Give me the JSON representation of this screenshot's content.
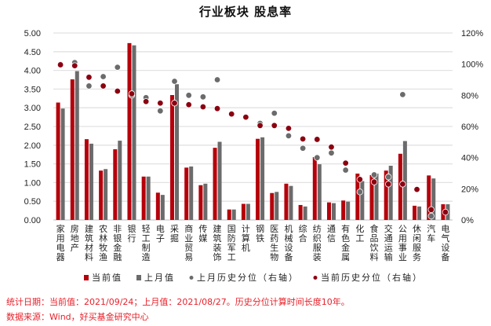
{
  "chart_data": {
    "type": "bar",
    "title": "行业板块 股息率",
    "categories": [
      "家用电器",
      "房地产",
      "建筑材料",
      "农林牧渔",
      "非银金融",
      "银行",
      "轻工制造",
      "电子",
      "采掘",
      "商业贸易",
      "传媒",
      "建筑装饰",
      "国防军工",
      "计算机",
      "钢铁",
      "医药生物",
      "机械设备",
      "综合",
      "纺织服装",
      "通信",
      "有色金属",
      "化工",
      "食品饮料",
      "交通运输",
      "公用事业",
      "休闲服务",
      "汽车",
      "电气设备"
    ],
    "series": [
      {
        "name": "当前值",
        "type": "bar",
        "axis": "left",
        "color": "#b5000a",
        "values": [
          3.14,
          3.76,
          2.16,
          1.32,
          1.89,
          4.73,
          1.16,
          0.73,
          3.34,
          1.4,
          0.93,
          1.93,
          0.28,
          0.43,
          2.17,
          0.72,
          0.97,
          0.4,
          1.68,
          0.47,
          0.52,
          1.24,
          1.2,
          1.32,
          1.77,
          0.38,
          1.19,
          0.42
        ]
      },
      {
        "name": "上月值",
        "type": "bar",
        "axis": "left",
        "color": "#6b6b6b",
        "values": [
          2.98,
          3.98,
          2.04,
          1.36,
          2.12,
          4.67,
          1.16,
          0.67,
          3.63,
          1.43,
          0.97,
          2.09,
          0.28,
          0.43,
          2.21,
          0.75,
          0.91,
          0.36,
          1.49,
          0.45,
          0.49,
          1.04,
          1.24,
          1.45,
          2.11,
          0.36,
          1.11,
          0.42
        ]
      },
      {
        "name": "上月历史分位（右轴）",
        "type": "scatter",
        "axis": "right",
        "color": "#6b6b6b",
        "values": [
          100,
          101,
          86,
          92,
          98,
          80,
          78.5,
          70,
          89,
          80,
          79,
          90,
          null,
          null,
          62,
          68.5,
          54,
          46,
          40,
          43,
          32,
          18,
          29,
          27.6,
          80.5,
          null,
          2.5,
          null
        ]
      },
      {
        "name": "当前历史分位（右轴）",
        "type": "scatter",
        "axis": "right",
        "color": "#8b0010",
        "values": [
          99.6,
          99,
          91.6,
          86,
          82.7,
          81,
          76,
          75,
          75,
          74,
          72.6,
          71.5,
          68,
          66,
          60.6,
          60.6,
          58.8,
          52,
          51.7,
          46.8,
          36.5,
          26,
          24.4,
          23,
          23,
          19.6,
          6.6,
          5
        ]
      }
    ],
    "ylim_left": [
      0,
      5
    ],
    "yticks_left": [
      "0.00",
      "0.50",
      "1.00",
      "1.50",
      "2.00",
      "2.50",
      "3.00",
      "3.50",
      "4.00",
      "4.50",
      "5.00"
    ],
    "ylim_right": [
      0,
      120
    ],
    "yticks_right": [
      "0%",
      "20%",
      "40%",
      "60%",
      "80%",
      "100%",
      "120%"
    ],
    "grid": true,
    "legend_placement": "bottom"
  },
  "footer": {
    "line1": "统计日期：当前值：2021/09/24；上月值：2021/08/27。历史分位计算时间长度10年。",
    "line2": "数据来源：Wind，好买基金研究中心"
  }
}
